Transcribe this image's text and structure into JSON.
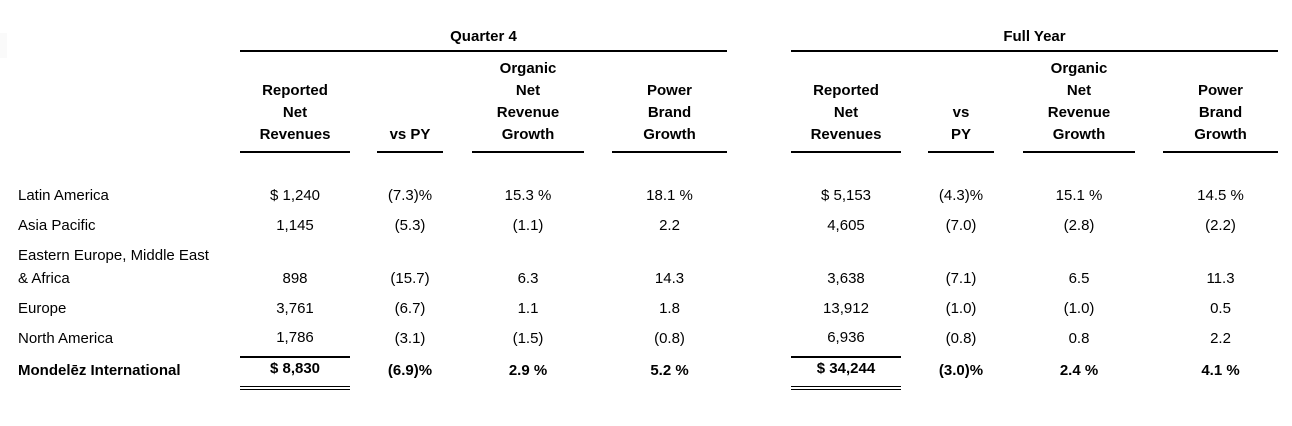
{
  "colors": {
    "background": "#ffffff",
    "text": "#000000",
    "rule": "#000000"
  },
  "table": {
    "sections": [
      {
        "title": "Quarter 4",
        "columns": [
          "Reported\nNet\nRevenues",
          "vs PY",
          "Organic\nNet\nRevenue\nGrowth",
          "Power\nBrand\nGrowth"
        ]
      },
      {
        "title": "Full Year",
        "columns": [
          "Reported\nNet\nRevenues",
          "vs\nPY",
          "Organic\nNet\nRevenue\nGrowth",
          "Power\nBrand\nGrowth"
        ]
      }
    ],
    "rows": [
      {
        "region": "Latin America",
        "q4": [
          "$ 1,240",
          "(7.3)%",
          "15.3 %",
          "18.1 %"
        ],
        "fy": [
          "$ 5,153",
          "(4.3)%",
          "15.1 %",
          "14.5 %"
        ]
      },
      {
        "region": "Asia Pacific",
        "q4": [
          "1,145",
          "(5.3)",
          "(1.1)",
          "2.2"
        ],
        "fy": [
          "4,605",
          "(7.0)",
          "(2.8)",
          "(2.2)"
        ]
      },
      {
        "region": "Eastern Europe, Middle East\n& Africa",
        "q4": [
          "898",
          "(15.7)",
          "6.3",
          "14.3"
        ],
        "fy": [
          "3,638",
          "(7.1)",
          "6.5",
          "11.3"
        ]
      },
      {
        "region": "Europe",
        "q4": [
          "3,761",
          "(6.7)",
          "1.1",
          "1.8"
        ],
        "fy": [
          "13,912",
          "(1.0)",
          "(1.0)",
          "0.5"
        ]
      },
      {
        "region": "North America",
        "q4": [
          "1,786",
          "(3.1)",
          "(1.5)",
          "(0.8)"
        ],
        "fy": [
          "6,936",
          "(0.8)",
          "0.8",
          "2.2"
        ]
      }
    ],
    "total": {
      "region": "Mondelēz International",
      "q4": [
        "$ 8,830",
        "(6.9)%",
        "2.9 %",
        "5.2 %"
      ],
      "fy": [
        "$ 34,244",
        "(3.0)%",
        "2.4 %",
        "4.1 %"
      ]
    }
  }
}
